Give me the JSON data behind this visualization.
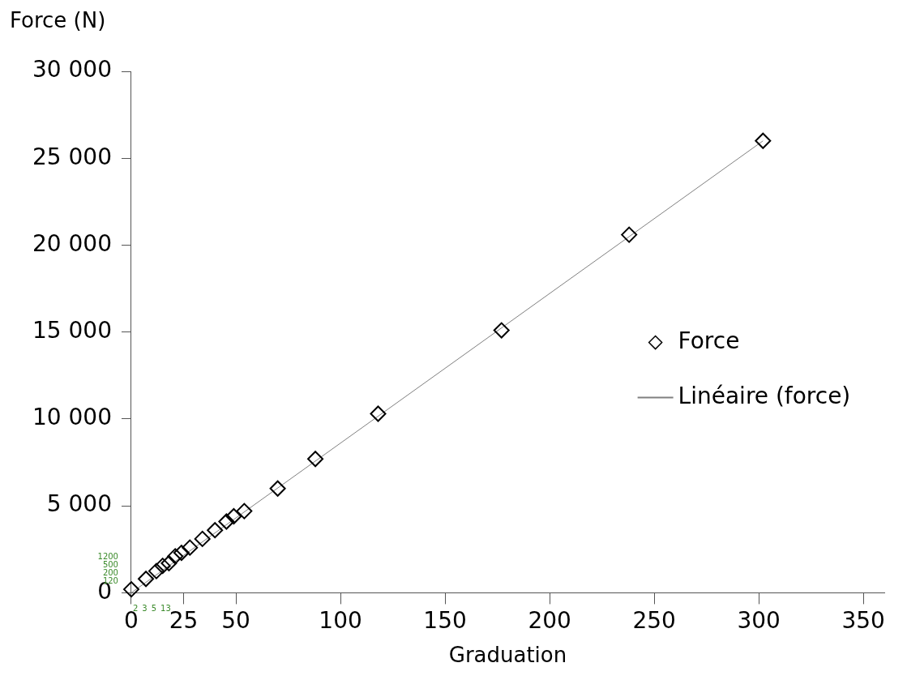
{
  "chart_data": {
    "type": "scatter",
    "ylabel": "Force (N)",
    "xlabel": "Graduation",
    "xlim": [
      0,
      360
    ],
    "ylim": [
      0,
      30000
    ],
    "xticks": [
      0,
      25,
      50,
      100,
      150,
      200,
      250,
      300,
      350
    ],
    "yticks": [
      {
        "value": 0,
        "label": "0"
      },
      {
        "value": 5000,
        "label": "5 000"
      },
      {
        "value": 10000,
        "label": "10 000"
      },
      {
        "value": 15000,
        "label": "15 000"
      },
      {
        "value": 20000,
        "label": "20 000"
      },
      {
        "value": 25000,
        "label": "25 000"
      },
      {
        "value": 30000,
        "label": "30 000"
      }
    ],
    "grid": false,
    "legend": "right",
    "marker": "diamond",
    "series": [
      {
        "name": "Force",
        "color": "#000000",
        "x": [
          0,
          7,
          12,
          15,
          18,
          21,
          24,
          28,
          34,
          40,
          45.5,
          49,
          54,
          70,
          88,
          118,
          177,
          238,
          302
        ],
        "values": [
          200,
          800,
          1250,
          1550,
          1700,
          2100,
          2300,
          2600,
          3100,
          3600,
          4100,
          4400,
          4700,
          6000,
          7700,
          10300,
          15100,
          20600,
          26000
        ]
      },
      {
        "name": "Linéaire (force)",
        "type": "line",
        "color": "#808080",
        "x": [
          0,
          302
        ],
        "values": [
          0,
          26000
        ],
        "marker": "none"
      }
    ],
    "annotations": [
      "2",
      "3",
      "5",
      "13",
      "120",
      "200",
      "500",
      "1200"
    ]
  }
}
